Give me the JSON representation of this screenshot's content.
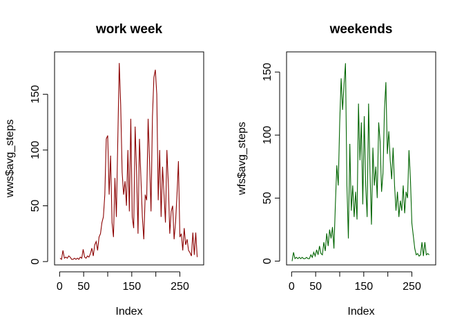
{
  "chart_data": [
    {
      "type": "line",
      "title": "work week",
      "x_label": "Index",
      "y_label": "wws$avg_steps",
      "x": [
        1,
        4,
        7,
        10,
        13,
        16,
        19,
        22,
        25,
        28,
        31,
        34,
        37,
        40,
        43,
        46,
        49,
        52,
        55,
        58,
        61,
        64,
        67,
        70,
        73,
        76,
        79,
        82,
        85,
        88,
        91,
        94,
        97,
        100,
        103,
        106,
        109,
        112,
        115,
        118,
        121,
        124,
        127,
        130,
        133,
        136,
        139,
        142,
        145,
        148,
        151,
        154,
        157,
        160,
        163,
        166,
        169,
        172,
        175,
        178,
        181,
        184,
        187,
        190,
        193,
        196,
        199,
        202,
        205,
        208,
        211,
        214,
        217,
        220,
        223,
        226,
        229,
        232,
        235,
        238,
        241,
        244,
        247,
        250,
        253,
        256,
        259,
        262,
        265,
        268,
        271,
        274,
        277,
        280,
        283,
        286
      ],
      "series": [
        {
          "color": "#8b0000",
          "values": [
            3,
            2,
            10,
            3,
            4,
            3,
            5,
            4,
            2,
            2,
            3,
            2,
            3,
            2,
            4,
            3,
            11,
            4,
            3,
            5,
            4,
            7,
            12,
            5,
            15,
            18,
            10,
            22,
            25,
            35,
            40,
            60,
            110,
            113,
            60,
            95,
            35,
            22,
            75,
            40,
            110,
            178,
            140,
            80,
            60,
            72,
            50,
            100,
            45,
            128,
            40,
            30,
            121,
            80,
            25,
            110,
            75,
            40,
            20,
            60,
            55,
            128,
            90,
            45,
            130,
            165,
            172,
            150,
            55,
            100,
            40,
            85,
            60,
            35,
            100,
            70,
            25,
            45,
            50,
            20,
            35,
            60,
            90,
            22,
            25,
            10,
            30,
            15,
            20,
            10,
            8,
            5,
            26,
            6,
            26,
            4
          ]
        }
      ],
      "xlim": [
        -10.5,
        299.5
      ],
      "ylim": [
        -3,
        188
      ],
      "xticks": [
        0,
        50,
        {
          "value": 100,
          "label": null
        },
        150,
        {
          "value": 200,
          "label": null
        },
        250
      ],
      "yticks": [
        0,
        50,
        100,
        150
      ]
    },
    {
      "type": "line",
      "title": "weekends",
      "x_label": "Index",
      "y_label": "wfs$avg_steps",
      "x": [
        1,
        4,
        7,
        10,
        13,
        16,
        19,
        22,
        25,
        28,
        31,
        34,
        37,
        40,
        43,
        46,
        49,
        52,
        55,
        58,
        61,
        64,
        67,
        70,
        73,
        76,
        79,
        82,
        85,
        88,
        91,
        94,
        97,
        100,
        103,
        106,
        109,
        112,
        115,
        118,
        121,
        124,
        127,
        130,
        133,
        136,
        139,
        142,
        145,
        148,
        151,
        154,
        157,
        160,
        163,
        166,
        169,
        172,
        175,
        178,
        181,
        184,
        187,
        190,
        193,
        196,
        199,
        202,
        205,
        208,
        211,
        214,
        217,
        220,
        223,
        226,
        229,
        232,
        235,
        238,
        241,
        244,
        247,
        250,
        253,
        256,
        259,
        262,
        265,
        268,
        271,
        274,
        277,
        280,
        283,
        286
      ],
      "series": [
        {
          "color": "#006400",
          "values": [
            0,
            7,
            2,
            3,
            2,
            3,
            2,
            3,
            2,
            2,
            3,
            2,
            2,
            5,
            3,
            7,
            4,
            9,
            5,
            12,
            6,
            5,
            15,
            8,
            22,
            12,
            25,
            18,
            27,
            10,
            45,
            76,
            60,
            110,
            145,
            120,
            140,
            157,
            60,
            18,
            93,
            40,
            60,
            35,
            55,
            33,
            125,
            80,
            110,
            45,
            115,
            60,
            35,
            125,
            70,
            29,
            90,
            60,
            75,
            50,
            110,
            95,
            55,
            70,
            120,
            142,
            85,
            103,
            80,
            65,
            90,
            60,
            40,
            55,
            35,
            48,
            40,
            60,
            38,
            55,
            50,
            88,
            65,
            30,
            20,
            10,
            5,
            6,
            4,
            5,
            15,
            4,
            15,
            5,
            6,
            5
          ]
        }
      ],
      "xlim": [
        -10.5,
        299.5
      ],
      "ylim": [
        -3,
        166
      ],
      "xticks": [
        0,
        50,
        {
          "value": 100,
          "label": null
        },
        150,
        {
          "value": 200,
          "label": null
        },
        250
      ],
      "yticks": [
        0,
        50,
        100,
        150
      ]
    }
  ]
}
